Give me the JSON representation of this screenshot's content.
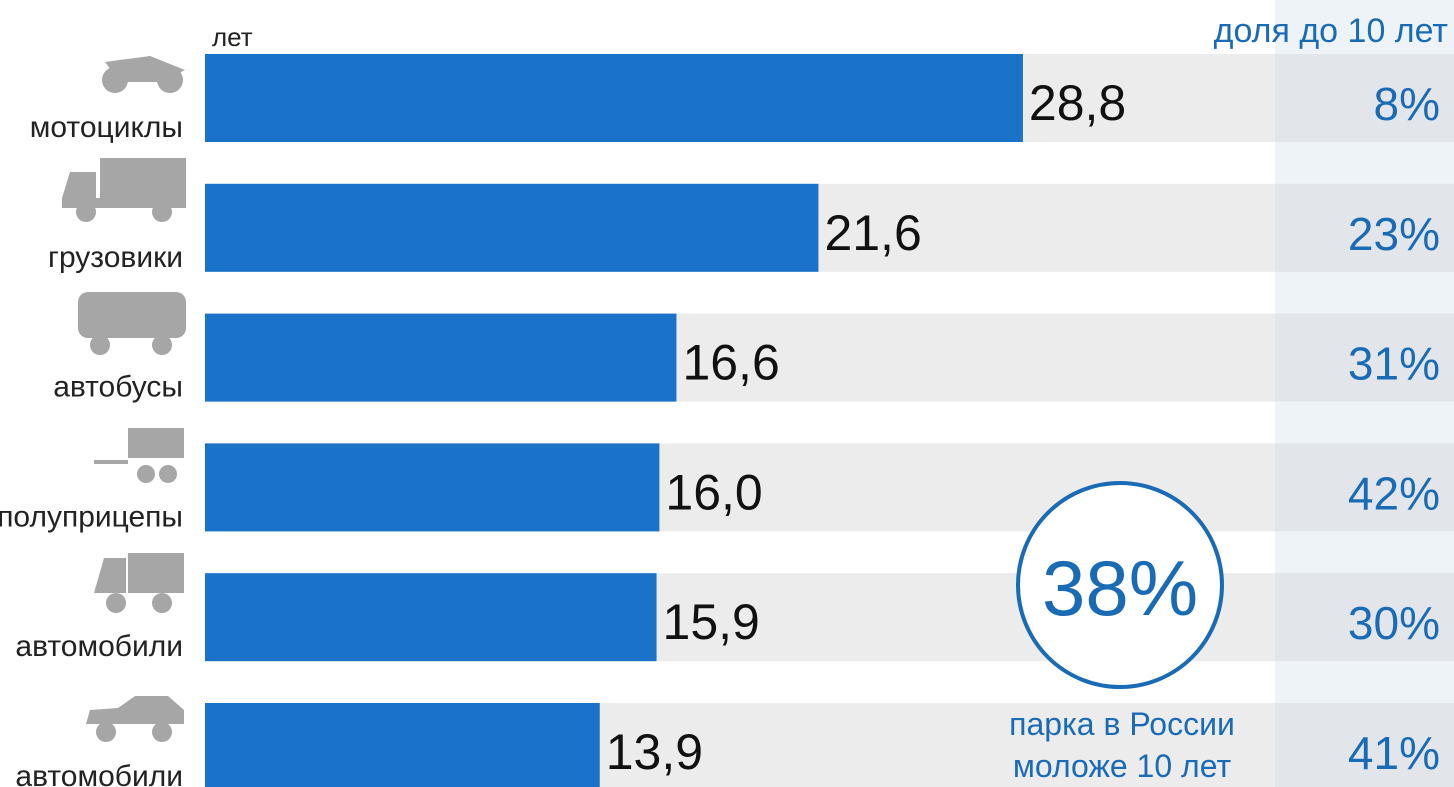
{
  "chart_data": {
    "type": "bar",
    "orientation": "horizontal",
    "unit_label": "лет",
    "share_title": "доля до 10 лет",
    "categories": [
      "мотоциклы",
      "грузовики",
      "автобусы",
      "полуприцепы",
      "автомобили",
      "автомобили"
    ],
    "values": [
      28.8,
      21.6,
      16.6,
      16.0,
      15.9,
      13.9
    ],
    "value_labels": [
      "28,8",
      "21,6",
      "16,6",
      "16,0",
      "15,9",
      "13,9"
    ],
    "color": "#1a73c8",
    "shares": [
      8,
      23,
      31,
      42,
      30,
      41
    ],
    "share_labels": [
      "8%",
      "23%",
      "31%",
      "42%",
      "30%",
      "41%"
    ],
    "annotation": {
      "value": 38,
      "label": "38%",
      "text": [
        "парка в России",
        "моложе 10 лет"
      ]
    }
  }
}
